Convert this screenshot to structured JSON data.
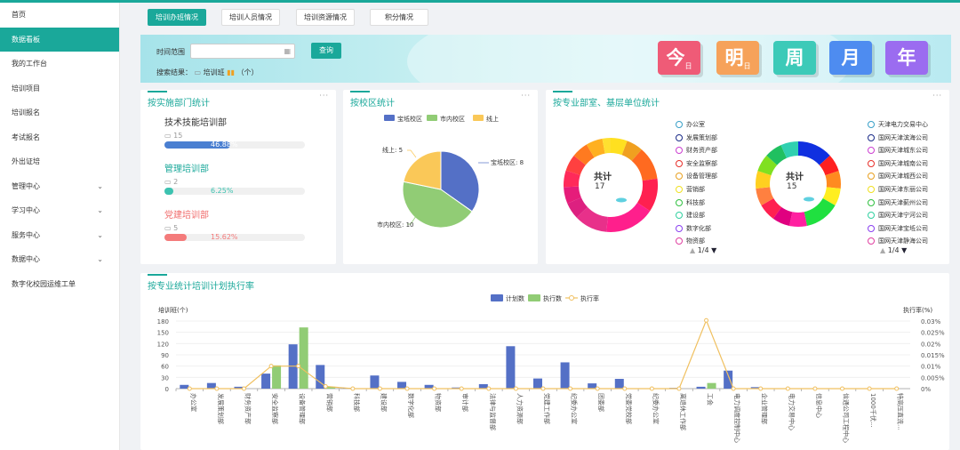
{
  "sidebar": {
    "items": [
      {
        "label": "首页",
        "chevron": false,
        "active": false
      },
      {
        "label": "数据看板",
        "chevron": false,
        "active": true
      },
      {
        "label": "我的工作台",
        "chevron": false,
        "active": false
      },
      {
        "label": "培训项目",
        "chevron": false,
        "active": false
      },
      {
        "label": "培训报名",
        "chevron": false,
        "active": false
      },
      {
        "label": "考试报名",
        "chevron": false,
        "active": false
      },
      {
        "label": "外出证培",
        "chevron": false,
        "active": false
      },
      {
        "label": "管理中心",
        "chevron": true,
        "active": false
      },
      {
        "label": "学习中心",
        "chevron": true,
        "active": false
      },
      {
        "label": "服务中心",
        "chevron": true,
        "active": false
      },
      {
        "label": "数据中心",
        "chevron": true,
        "active": false
      },
      {
        "label": "数字化校园运维工单",
        "chevron": false,
        "active": false
      }
    ]
  },
  "tabs": [
    {
      "label": "培训办班情况",
      "active": true
    },
    {
      "label": "培训人员情况",
      "active": false
    },
    {
      "label": "培训资源情况",
      "active": false
    },
    {
      "label": "积分情况",
      "active": false
    }
  ],
  "filter": {
    "time_label": "时间范围",
    "query_button": "查询",
    "result_prefix": "搜索结果：",
    "result_mid": "培训班",
    "result_suffix": "（个）",
    "periods": [
      {
        "label": "今",
        "sub": "日",
        "color": "#ef5b77"
      },
      {
        "label": "明",
        "sub": "日",
        "color": "#f6a25a"
      },
      {
        "label": "周",
        "sub": "",
        "color": "#3ccab8"
      },
      {
        "label": "月",
        "sub": "",
        "color": "#4e8cf0"
      },
      {
        "label": "年",
        "sub": "",
        "color": "#9b6cf0"
      }
    ]
  },
  "dept_card": {
    "title": "按实施部门统计",
    "items": [
      {
        "name": "技术技能培训部",
        "count": "15",
        "percent": "46.88%",
        "fraction": 0.4688,
        "color": "#4a7fd1",
        "name_color": "#333"
      },
      {
        "name": "管理培训部",
        "count": "2",
        "percent": "6.25%",
        "fraction": 0.0625,
        "color": "#3cc2b0",
        "name_color": "#1aa89a"
      },
      {
        "name": "党建培训部",
        "count": "5",
        "percent": "15.62%",
        "fraction": 0.1562,
        "color": "#f47b7b",
        "name_color": "#f06b6b"
      }
    ]
  },
  "campus_card": {
    "title": "按校区统计",
    "legend": [
      "宝坻校区",
      "市内校区",
      "线上"
    ],
    "colors": [
      "#5470c6",
      "#91cc75",
      "#fac858"
    ],
    "labels": [
      "宝坻校区: 8",
      "市内校区: 10",
      "线上: 5"
    ]
  },
  "unit_card": {
    "title": "按专业部室、基层单位统计",
    "donut1": {
      "total_label": "共计",
      "total": "17",
      "pager": "1/4"
    },
    "donut2": {
      "total_label": "共计",
      "total": "15",
      "pager": "1/4"
    },
    "legend1": [
      {
        "label": "办公室",
        "color": "#3aa0c8"
      },
      {
        "label": "发展策划部",
        "color": "#1a2a88"
      },
      {
        "label": "财务资产部",
        "color": "#cc3fd0"
      },
      {
        "label": "安全监察部",
        "color": "#e8302a"
      },
      {
        "label": "设备管理部",
        "color": "#e8a020"
      },
      {
        "label": "营销部",
        "color": "#f0e020"
      },
      {
        "label": "科技部",
        "color": "#30c040"
      },
      {
        "label": "建设部",
        "color": "#30d0a0"
      },
      {
        "label": "数字化部",
        "color": "#8a40f0"
      },
      {
        "label": "物资部",
        "color": "#e040a0"
      }
    ],
    "legend2": [
      {
        "label": "天津电力交易中心",
        "color": "#3aa0c8"
      },
      {
        "label": "国网天津滨海公司",
        "color": "#1a2a88"
      },
      {
        "label": "国网天津城东公司",
        "color": "#cc3fd0"
      },
      {
        "label": "国网天津城南公司",
        "color": "#e8302a"
      },
      {
        "label": "国网天津城西公司",
        "color": "#e8a020"
      },
      {
        "label": "国网天津东丽公司",
        "color": "#f0e020"
      },
      {
        "label": "国网天津蓟州公司",
        "color": "#30c040"
      },
      {
        "label": "国网天津宁河公司",
        "color": "#30d0a0"
      },
      {
        "label": "国网天津宝坻公司",
        "color": "#8a40f0"
      },
      {
        "label": "国网天津静海公司",
        "color": "#e040a0"
      }
    ]
  },
  "plan_card": {
    "title": "按专业统计培训计划执行率"
  },
  "chart_data": [
    {
      "type": "pie",
      "categories": [
        "宝坻校区",
        "市内校区",
        "线上"
      ],
      "values": [
        8,
        10,
        5
      ],
      "legend": "top"
    },
    {
      "type": "pie",
      "subtype": "donut",
      "total": 17,
      "slice_colors": [
        "#ffe020",
        "#f0a020",
        "#ff6a20",
        "#ff2050",
        "#ff1f8c",
        "#e8308a",
        "#dd2080",
        "#e61c7a",
        "#ff2a5a",
        "#ff4040",
        "#ff7a20",
        "#ffb020",
        "#ffe030"
      ],
      "values": [
        1,
        1,
        2,
        2,
        3,
        2,
        1,
        1,
        1,
        1,
        1,
        1,
        0.5
      ]
    },
    {
      "type": "pie",
      "subtype": "donut",
      "total": 15,
      "slice_colors": [
        "#1030e0",
        "#ff2020",
        "#ff8a20",
        "#ffee20",
        "#20e040",
        "#ff20a0",
        "#e00080",
        "#ff2050",
        "#ff8040",
        "#ffd020",
        "#80e020",
        "#20c060",
        "#30d0b0"
      ],
      "values": [
        2,
        1,
        1,
        1,
        2,
        1,
        1,
        1,
        1,
        1,
        1,
        1,
        1
      ]
    },
    {
      "type": "bar",
      "legend": [
        "计划数",
        "执行数",
        "执行率"
      ],
      "ylabel": "培训班(个)",
      "y2label": "执行率(%)",
      "ylim": [
        0,
        180
      ],
      "yticks": [
        0,
        30,
        60,
        90,
        120,
        150,
        180
      ],
      "y2lim": [
        0,
        0.03
      ],
      "y2ticks": [
        "0%",
        "0.005%",
        "0.01%",
        "0.015%",
        "0.02%",
        "0.025%",
        "0.03%"
      ],
      "categories": [
        "办公室",
        "发展策划部",
        "财务资产部",
        "安全监察部",
        "设备管理部",
        "营销部",
        "科技部",
        "建设部",
        "数字化部",
        "物资部",
        "审计部",
        "法律与监督部",
        "人力资源部",
        "党建工作部",
        "纪委办公室",
        "团委部",
        "党委党校部",
        "纪委办公室",
        "离退休工作部",
        "工会",
        "电力调度控制中心",
        "企业管理部",
        "电力交易中心",
        "信息中心",
        "信通公司工程中心",
        "1000千伏...",
        "特高压直流..."
      ],
      "category_labels": [
        "办公室",
        "发展策划部",
        "财务资产部",
        "安全监察部",
        "设备管理部",
        "营销部",
        "科技部",
        "建设部",
        "数字化部",
        "物资部",
        "审计部",
        "法律与监督部",
        "人力资源部",
        "党建工作部",
        "纪委办公室",
        "团委部",
        "党委党校部",
        "纪委办公室",
        "离退休工作部",
        "工会",
        "电力调度控制中心",
        "企业管理部",
        "电力交易中心",
        "信息中心",
        "信通公司工程中心",
        "1000千伏...",
        "特高压直流..."
      ],
      "series": [
        {
          "name": "计划数",
          "color": "#5470c6",
          "values": [
            10,
            15,
            5,
            40,
            118,
            63,
            2,
            35,
            18,
            10,
            3,
            12,
            113,
            27,
            70,
            14,
            26,
            0,
            2,
            5,
            48,
            4,
            0,
            0,
            0,
            0,
            0
          ]
        },
        {
          "name": "执行数",
          "color": "#91cc75",
          "values": [
            0,
            0,
            0,
            62,
            163,
            5,
            0,
            0,
            0,
            0,
            0,
            0,
            0,
            0,
            0,
            0,
            0,
            0,
            0,
            15,
            0,
            0,
            0,
            0,
            0,
            0,
            0
          ]
        },
        {
          "name": "执行率",
          "color": "#f0c060",
          "axis": "right",
          "values": [
            0,
            0,
            0,
            0.01,
            0.01,
            0.001,
            0,
            0,
            0,
            0,
            0,
            0,
            0,
            0,
            0,
            0,
            0,
            0,
            0,
            0.0303,
            0,
            0,
            0,
            0,
            0,
            0,
            0
          ]
        }
      ]
    }
  ]
}
